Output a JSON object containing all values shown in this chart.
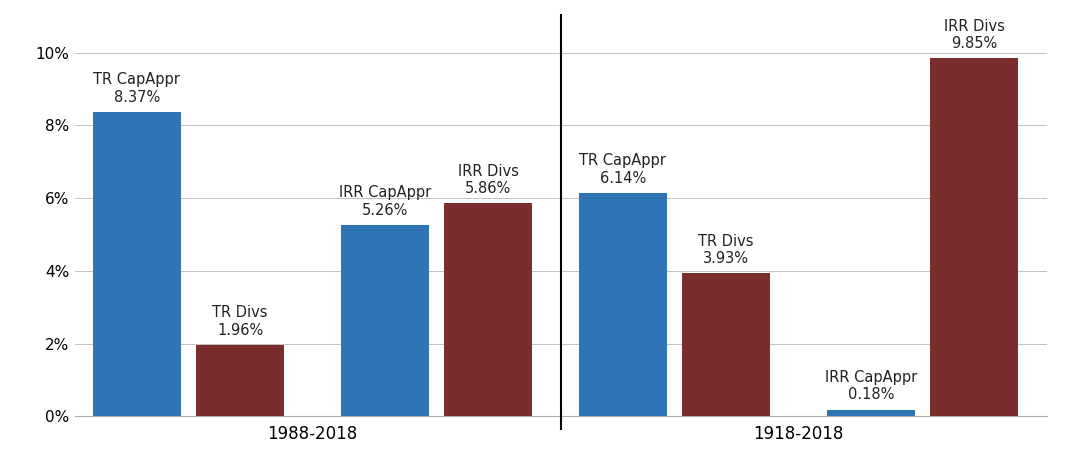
{
  "panel1": {
    "label": "1988-2018",
    "bars": [
      {
        "label": "TR CapAppr",
        "value": 8.37,
        "color": "#2E75B6",
        "x": 0.0
      },
      {
        "label": "TR Divs",
        "value": 1.96,
        "color": "#7B2D2D",
        "x": 1.0
      },
      {
        "label": "IRR CapAppr",
        "value": 5.26,
        "color": "#2E75B6",
        "x": 2.4
      },
      {
        "label": "IRR Divs",
        "value": 5.86,
        "color": "#7B2D2D",
        "x": 3.4
      }
    ]
  },
  "panel2": {
    "label": "1918-2018",
    "bars": [
      {
        "label": "TR CapAppr",
        "value": 6.14,
        "color": "#2E75B6",
        "x": 0.0
      },
      {
        "label": "TR Divs",
        "value": 3.93,
        "color": "#7B2D2D",
        "x": 1.0
      },
      {
        "label": "IRR CapAppr",
        "value": 0.18,
        "color": "#2E75B6",
        "x": 2.4
      },
      {
        "label": "IRR Divs",
        "value": 9.85,
        "color": "#7B2D2D",
        "x": 3.4
      }
    ]
  },
  "ylim": [
    0,
    0.108
  ],
  "yticks": [
    0.0,
    0.02,
    0.04,
    0.06,
    0.08,
    0.1
  ],
  "ytick_labels": [
    "0%",
    "2%",
    "4%",
    "6%",
    "8%",
    "10%"
  ],
  "bar_width": 0.85,
  "background_color": "#ffffff",
  "label_fontsize": 10.5,
  "tick_fontsize": 11,
  "xlabel_fontsize": 12,
  "divider_color": "#000000",
  "axis_line_color": "#aaaaaa",
  "text_color": "#222222",
  "xlim": [
    -0.6,
    4.1
  ]
}
